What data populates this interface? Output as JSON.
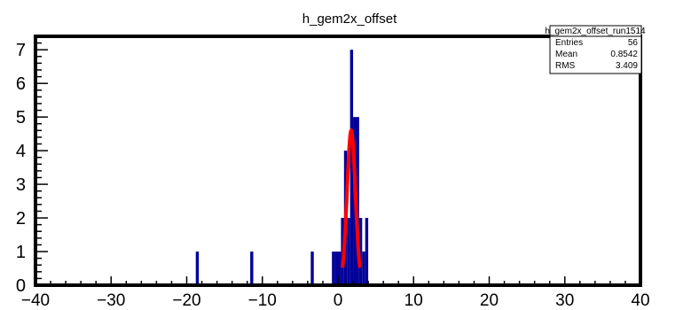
{
  "chart_data": {
    "type": "bar",
    "title": "h_gem2x_offset",
    "xlabel": "",
    "ylabel": "",
    "xlim": [
      -40,
      40
    ],
    "ylim": [
      0,
      7.4
    ],
    "x_ticks": [
      -40,
      -30,
      -20,
      -10,
      0,
      10,
      20,
      30,
      40
    ],
    "y_ticks": [
      0,
      1,
      2,
      3,
      4,
      5,
      6,
      7
    ],
    "bin_width": 0.4,
    "bins": [
      {
        "x": -18.8,
        "value": 1
      },
      {
        "x": -11.6,
        "value": 1
      },
      {
        "x": -3.6,
        "value": 1
      },
      {
        "x": -0.8,
        "value": 1
      },
      {
        "x": -0.4,
        "value": 1
      },
      {
        "x": 0.0,
        "value": 1
      },
      {
        "x": 0.4,
        "value": 2
      },
      {
        "x": 0.8,
        "value": 4
      },
      {
        "x": 1.2,
        "value": 2
      },
      {
        "x": 1.6,
        "value": 7
      },
      {
        "x": 2.0,
        "value": 5
      },
      {
        "x": 2.4,
        "value": 5
      },
      {
        "x": 2.8,
        "value": 2
      },
      {
        "x": 3.2,
        "value": 1
      },
      {
        "x": 3.6,
        "value": 2
      }
    ],
    "fit_curve": {
      "type": "gaussian",
      "color": "#ff0000",
      "amplitude": 4.6,
      "mean": 1.75,
      "sigma": 0.55,
      "range": [
        0.6,
        2.9
      ]
    },
    "bar_color": "#000099",
    "grid": false,
    "legend": "none",
    "stats_box": {
      "name": "h_gem2x_offset_run1514",
      "rows": [
        {
          "label": "Entries",
          "value": "56"
        },
        {
          "label": "Mean",
          "value": "0.8542"
        },
        {
          "label": "RMS",
          "value": "3.409"
        }
      ]
    }
  }
}
